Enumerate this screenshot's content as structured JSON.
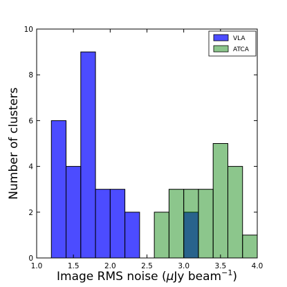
{
  "chart_data": {
    "type": "bar",
    "subtype": "histogram",
    "xlabel_main": "Image RMS noise (",
    "xlabel_mu": "μ",
    "xlabel_unit": "Jy beam",
    "xlabel_exp": "−1",
    "xlabel_close": ")",
    "ylabel": "Number of clusters",
    "xlim": [
      1.0,
      4.0
    ],
    "ylim": [
      0,
      10
    ],
    "xticks": [
      "1.0",
      "1.5",
      "2.0",
      "2.5",
      "3.0",
      "3.5",
      "4.0"
    ],
    "yticks": [
      "0",
      "2",
      "4",
      "6",
      "8",
      "10"
    ],
    "grid": false,
    "legend_position": "top-right",
    "series": [
      {
        "name": "VLA",
        "color": "#0000ff",
        "alpha": 0.7,
        "bins": [
          {
            "x0": 1.2,
            "x1": 1.4,
            "count": 6
          },
          {
            "x0": 1.4,
            "x1": 1.6,
            "count": 4
          },
          {
            "x0": 1.6,
            "x1": 1.8,
            "count": 9
          },
          {
            "x0": 1.8,
            "x1": 2.0,
            "count": 3
          },
          {
            "x0": 2.0,
            "x1": 2.2,
            "count": 3
          },
          {
            "x0": 2.2,
            "x1": 2.4,
            "count": 2
          },
          {
            "x0": 3.0,
            "x1": 3.2,
            "count": 2
          }
        ]
      },
      {
        "name": "ATCA",
        "color": "#008000",
        "alpha": 0.45,
        "bins": [
          {
            "x0": 2.6,
            "x1": 2.8,
            "count": 2
          },
          {
            "x0": 2.8,
            "x1": 3.0,
            "count": 3
          },
          {
            "x0": 3.0,
            "x1": 3.2,
            "count": 3
          },
          {
            "x0": 3.2,
            "x1": 3.4,
            "count": 3
          },
          {
            "x0": 3.4,
            "x1": 3.6,
            "count": 5
          },
          {
            "x0": 3.6,
            "x1": 3.8,
            "count": 4
          },
          {
            "x0": 3.8,
            "x1": 4.0,
            "count": 1
          }
        ]
      }
    ]
  }
}
